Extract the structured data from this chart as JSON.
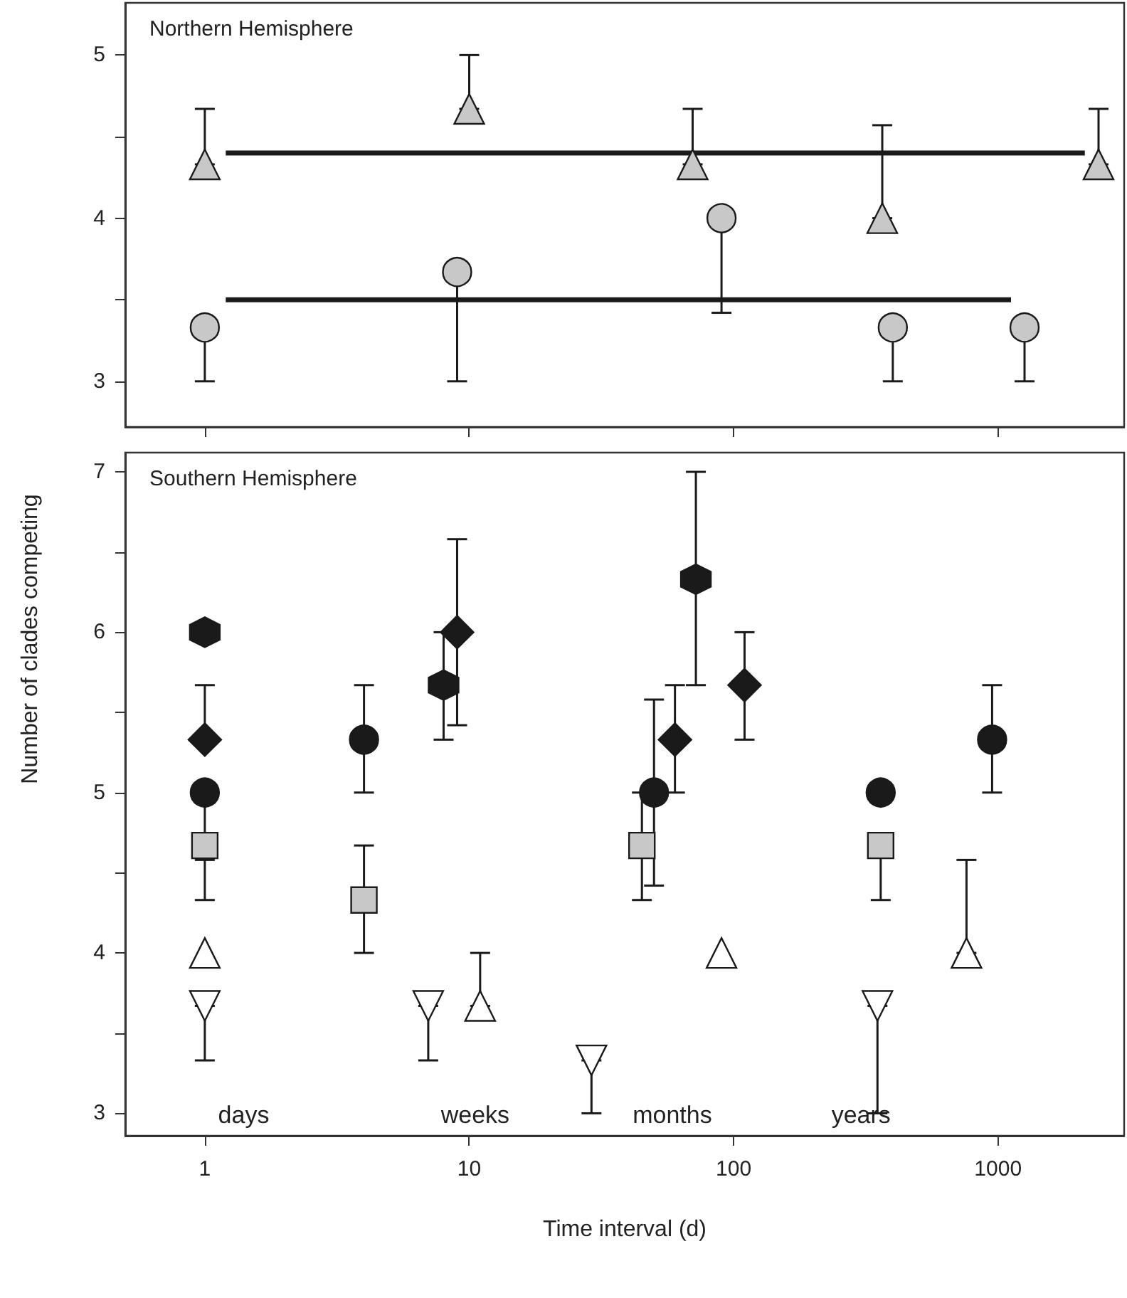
{
  "chart_data": [
    {
      "type": "scatter",
      "title": "Northern Hemisphere",
      "log": "x",
      "xlim": [
        0.5,
        3000
      ],
      "xticks": [
        1,
        10,
        100,
        1000
      ],
      "ylim": [
        2.72,
        5.32
      ],
      "yticks": [
        3,
        {
          "value": 3.5,
          "label": null
        },
        4,
        {
          "value": 4.5,
          "label": null
        },
        5
      ],
      "tick_labels": "y",
      "grid": false,
      "series": [
        {
          "type": "line",
          "color": "#1a1a1a",
          "marker": "none",
          "line_style": "solid",
          "x": [
            1.2,
            2130
          ],
          "values": [
            4.4,
            4.4
          ]
        },
        {
          "type": "line",
          "color": "#1a1a1a",
          "marker": "none",
          "line_style": "solid",
          "x": [
            1.2,
            1120
          ],
          "values": [
            3.5,
            3.5
          ]
        },
        {
          "color": "#c8c8c8",
          "marker": "triangle",
          "x": [
            1,
            10,
            70,
            365,
            2400
          ],
          "values": [
            4.33,
            4.67,
            4.33,
            4.0,
            4.33
          ],
          "errors": [
            [
              4.33,
              4.67
            ],
            [
              4.67,
              5.0
            ],
            [
              4.33,
              4.67
            ],
            [
              4.0,
              4.57
            ],
            [
              4.33,
              4.67
            ]
          ]
        },
        {
          "color": "#c8c8c8",
          "marker": "circle",
          "x": [
            1,
            9,
            90,
            400,
            1260
          ],
          "values": [
            3.33,
            3.67,
            4.0,
            3.33,
            3.33
          ],
          "errors": [
            [
              3.0,
              3.33
            ],
            [
              3.0,
              3.67
            ],
            [
              3.42,
              4.0
            ],
            [
              3.0,
              3.33
            ],
            [
              3.0,
              3.33
            ]
          ]
        }
      ]
    },
    {
      "type": "scatter",
      "title": "Southern Hemisphere",
      "xlabel": "Time interval (d)",
      "ylabel": "Number of clades competing",
      "log": "x",
      "xlim": [
        0.5,
        3000
      ],
      "xticks": [
        1,
        10,
        100,
        1000
      ],
      "ylim": [
        2.86,
        7.12
      ],
      "yticks": [
        3,
        {
          "value": 3.5,
          "label": null
        },
        4,
        {
          "value": 4.5,
          "label": null
        },
        5,
        {
          "value": 5.5,
          "label": null
        },
        6,
        {
          "value": 6.5,
          "label": null
        },
        7
      ],
      "grid": false,
      "annotations": [
        "days",
        "weeks",
        "months",
        "years"
      ],
      "series": [
        {
          "color": "#1a1a1a",
          "x": [
            1,
            8,
            72
          ],
          "values": [
            6.0,
            5.67,
            6.33
          ],
          "errors": [
            null,
            [
              5.33,
              6.0
            ],
            [
              5.67,
              7.0
            ]
          ]
        },
        {
          "color": "#1a1a1a",
          "marker": "diamond",
          "x": [
            1,
            9,
            60,
            110
          ],
          "values": [
            5.33,
            6.0,
            5.33,
            5.67
          ],
          "errors": [
            [
              5.33,
              5.67
            ],
            [
              5.42,
              6.58
            ],
            [
              5.0,
              5.67
            ],
            [
              5.33,
              6.0
            ]
          ]
        },
        {
          "color": "#1a1a1a",
          "marker": "circle",
          "x": [
            1,
            4,
            50,
            360,
            950
          ],
          "values": [
            5.0,
            5.33,
            5.0,
            5.0,
            5.33
          ],
          "errors": [
            [
              4.58,
              5.0
            ],
            [
              5.0,
              5.67
            ],
            [
              4.42,
              5.58
            ],
            null,
            [
              5.0,
              5.67
            ]
          ]
        },
        {
          "color": "#c8c8c8",
          "marker": "square",
          "x": [
            1,
            4,
            45,
            360
          ],
          "values": [
            4.67,
            4.33,
            4.67,
            4.67
          ],
          "errors": [
            [
              4.33,
              4.67
            ],
            [
              4.0,
              4.67
            ],
            [
              4.33,
              5.0
            ],
            [
              4.33,
              4.67
            ]
          ]
        },
        {
          "color": "#ffffff",
          "marker": "triangle",
          "x": [
            1,
            11,
            90,
            760
          ],
          "values": [
            4.0,
            3.67,
            4.0,
            4.0
          ],
          "errors": [
            null,
            [
              3.67,
              4.0
            ],
            null,
            [
              4.0,
              4.58
            ]
          ]
        },
        {
          "color": "#ffffff",
          "marker": "triangle-down",
          "x": [
            1,
            7,
            29,
            350
          ],
          "values": [
            3.67,
            3.67,
            3.33,
            3.67
          ],
          "errors": [
            [
              3.33,
              3.67
            ],
            [
              3.33,
              3.67
            ],
            [
              3.0,
              3.33
            ],
            [
              3.0,
              3.67
            ]
          ]
        }
      ]
    }
  ]
}
